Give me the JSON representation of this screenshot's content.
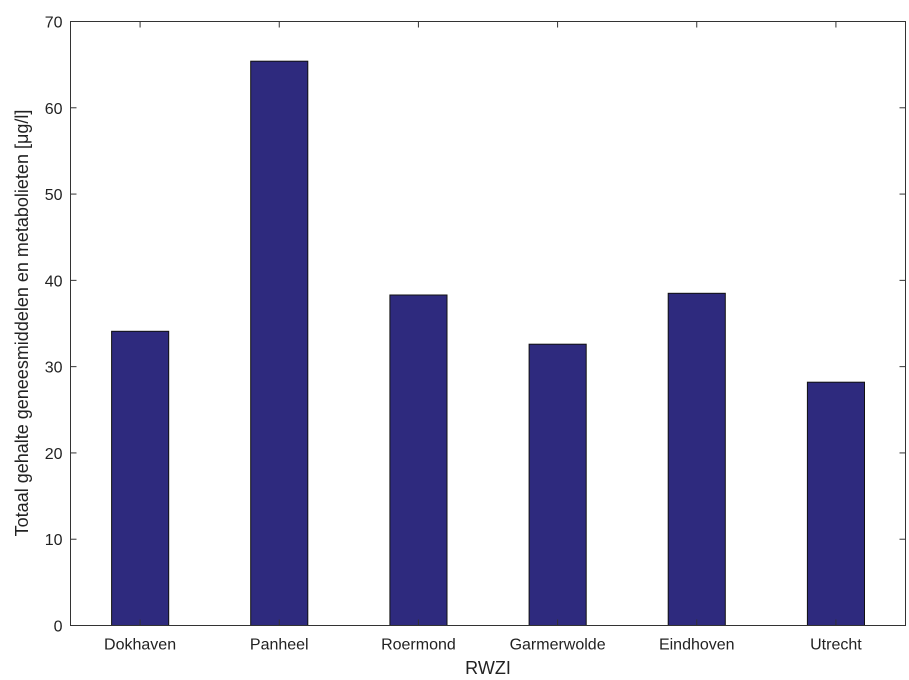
{
  "chart_data": {
    "type": "bar",
    "categories": [
      "Dokhaven",
      "Panheel",
      "Roermond",
      "Garmerwolde",
      "Eindhoven",
      "Utrecht"
    ],
    "values": [
      34.1,
      65.4,
      38.3,
      32.6,
      38.5,
      28.2
    ],
    "xlabel": "RWZI",
    "ylabel": "Totaal gehalte geneesmiddelen en metabolieten [μg/l]",
    "ylim": [
      0,
      70
    ],
    "yticks": [
      0,
      10,
      20,
      30,
      40,
      50,
      60,
      70
    ],
    "grid": false,
    "bar_color": "#2e2a7e"
  }
}
